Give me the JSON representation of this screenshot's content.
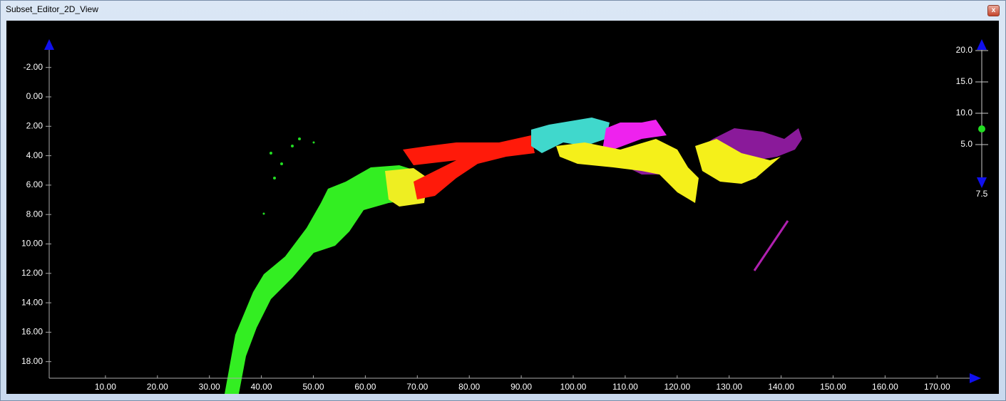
{
  "window": {
    "title": "Subset_Editor_2D_View"
  },
  "x_axis": {
    "ticks": [
      {
        "value": 10,
        "label": "10.00"
      },
      {
        "value": 20,
        "label": "20.00"
      },
      {
        "value": 30,
        "label": "30.00"
      },
      {
        "value": 40,
        "label": "40.00"
      },
      {
        "value": 50,
        "label": "50.00"
      },
      {
        "value": 60,
        "label": "60.00"
      },
      {
        "value": 70,
        "label": "70.00"
      },
      {
        "value": 80,
        "label": "80.00"
      },
      {
        "value": 90,
        "label": "90.00"
      },
      {
        "value": 100,
        "label": "100.00"
      },
      {
        "value": 110,
        "label": "110.00"
      },
      {
        "value": 120,
        "label": "120.00"
      },
      {
        "value": 130,
        "label": "130.00"
      },
      {
        "value": 140,
        "label": "140.00"
      },
      {
        "value": 150,
        "label": "150.00"
      },
      {
        "value": 160,
        "label": "160.00"
      },
      {
        "value": 170,
        "label": "170.00"
      }
    ]
  },
  "y_axis": {
    "ticks": [
      {
        "value": -2,
        "label": "-2.00"
      },
      {
        "value": 0,
        "label": "0.00"
      },
      {
        "value": 2,
        "label": "2.00"
      },
      {
        "value": 4,
        "label": "4.00"
      },
      {
        "value": 6,
        "label": "6.00"
      },
      {
        "value": 8,
        "label": "8.00"
      },
      {
        "value": 10,
        "label": "10.00"
      },
      {
        "value": 12,
        "label": "12.00"
      },
      {
        "value": 14,
        "label": "14.00"
      },
      {
        "value": 16,
        "label": "16.00"
      },
      {
        "value": 18,
        "label": "18.00"
      }
    ]
  },
  "slider": {
    "ticks": [
      {
        "value": 20,
        "label": "20.0"
      },
      {
        "value": 15,
        "label": "15.0"
      },
      {
        "value": 10,
        "label": "10.0"
      },
      {
        "value": 5,
        "label": "5.0"
      }
    ],
    "value": 7.5
  }
}
